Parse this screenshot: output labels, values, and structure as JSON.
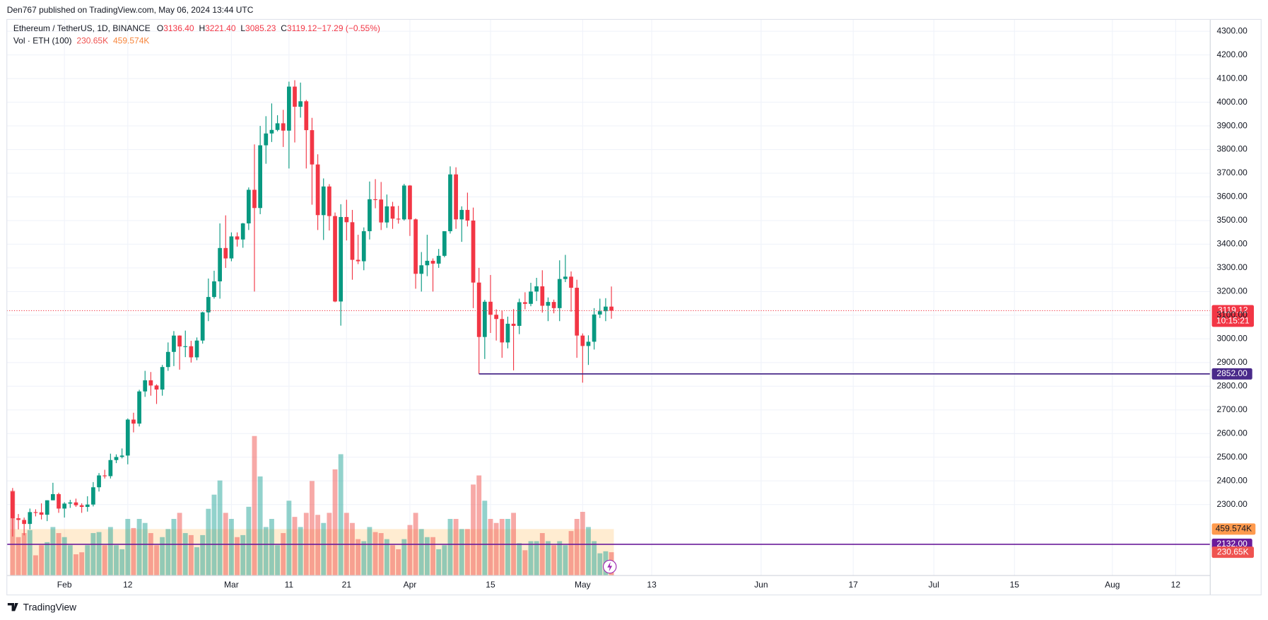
{
  "header": "Den767 published on TradingView.com, May 06, 2024 13:44 UTC",
  "footer": "TradingView",
  "chart_data": {
    "type": "candlestick",
    "symbol": "Ethereum / TetherUS, 1D, BINANCE",
    "ohlc_legend": [
      {
        "key": "O",
        "value": "3136.40"
      },
      {
        "key": "H",
        "value": "3221.40"
      },
      {
        "key": "L",
        "value": "3085.23"
      },
      {
        "key": "C",
        "value": "3119.12"
      },
      {
        "key": "",
        "value": "−17.29 (−0.55%)"
      }
    ],
    "volume_title": "Vol · ETH (100)",
    "volume_legend": [
      "230.65K",
      "459.574K"
    ],
    "x": [
      "2024-01-23",
      "2024-01-24",
      "2024-01-25",
      "2024-01-26",
      "2024-01-27",
      "2024-01-28",
      "2024-01-29",
      "2024-01-30",
      "2024-01-31",
      "2024-02-01",
      "2024-02-02",
      "2024-02-03",
      "2024-02-04",
      "2024-02-05",
      "2024-02-06",
      "2024-02-07",
      "2024-02-08",
      "2024-02-09",
      "2024-02-10",
      "2024-02-11",
      "2024-02-12",
      "2024-02-13",
      "2024-02-14",
      "2024-02-15",
      "2024-02-16",
      "2024-02-17",
      "2024-02-18",
      "2024-02-19",
      "2024-02-20",
      "2024-02-21",
      "2024-02-22",
      "2024-02-23",
      "2024-02-24",
      "2024-02-25",
      "2024-02-26",
      "2024-02-27",
      "2024-02-28",
      "2024-02-29",
      "2024-03-01",
      "2024-03-02",
      "2024-03-03",
      "2024-03-04",
      "2024-03-05",
      "2024-03-06",
      "2024-03-07",
      "2024-03-08",
      "2024-03-09",
      "2024-03-10",
      "2024-03-11",
      "2024-03-12",
      "2024-03-13",
      "2024-03-14",
      "2024-03-15",
      "2024-03-16",
      "2024-03-17",
      "2024-03-18",
      "2024-03-19",
      "2024-03-20",
      "2024-03-21",
      "2024-03-22",
      "2024-03-23",
      "2024-03-24",
      "2024-03-25",
      "2024-03-26",
      "2024-03-27",
      "2024-03-28",
      "2024-03-29",
      "2024-03-30",
      "2024-03-31",
      "2024-04-01",
      "2024-04-02",
      "2024-04-03",
      "2024-04-04",
      "2024-04-05",
      "2024-04-06",
      "2024-04-07",
      "2024-04-08",
      "2024-04-09",
      "2024-04-10",
      "2024-04-11",
      "2024-04-12",
      "2024-04-13",
      "2024-04-14",
      "2024-04-15",
      "2024-04-16",
      "2024-04-17",
      "2024-04-18",
      "2024-04-19",
      "2024-04-20",
      "2024-04-21",
      "2024-04-22",
      "2024-04-23",
      "2024-04-24",
      "2024-04-25",
      "2024-04-26",
      "2024-04-27",
      "2024-04-28",
      "2024-04-29",
      "2024-04-30",
      "2024-05-01",
      "2024-05-02",
      "2024-05-03",
      "2024-05-04",
      "2024-05-05",
      "2024-05-06"
    ],
    "open": [
      2355,
      2242,
      2235,
      2218,
      2268,
      2267,
      2257,
      2318,
      2344,
      2283,
      2304,
      2309,
      2297,
      2290,
      2300,
      2373,
      2423,
      2420,
      2488,
      2501,
      2507,
      2659,
      2642,
      2778,
      2825,
      2803,
      2786,
      2881,
      2945,
      3014,
      2968,
      2969,
      2922,
      2993,
      3112,
      3177,
      3243,
      3384,
      3340,
      3433,
      3420,
      3488,
      3630,
      3553,
      3818,
      3868,
      3883,
      3911,
      3880,
      4066,
      3981,
      4004,
      3882,
      3737,
      3523,
      3644,
      3519,
      3158,
      3515,
      3493,
      3334,
      3328,
      3455,
      3590,
      3589,
      3492,
      3560,
      3508,
      3505,
      3648,
      3505,
      3275,
      3311,
      3330,
      3318,
      3351,
      3455,
      3695,
      3505,
      3545,
      3500,
      3238,
      3008,
      3157,
      3102,
      3084,
      2985,
      3064,
      3055,
      3155,
      3148,
      3200,
      3222,
      3140,
      3156,
      3130,
      3253,
      3263,
      3216,
      3014,
      2970,
      2988,
      3103,
      3117,
      3136.4
    ],
    "high": [
      2370,
      2260,
      2245,
      2283,
      2280,
      2305,
      2318,
      2392,
      2350,
      2310,
      2320,
      2325,
      2305,
      2335,
      2395,
      2433,
      2447,
      2515,
      2512,
      2537,
      2664,
      2688,
      2785,
      2865,
      2860,
      2808,
      2890,
      2985,
      3033,
      3015,
      3035,
      2992,
      3006,
      3115,
      3255,
      3288,
      3488,
      3522,
      3450,
      3450,
      3490,
      3640,
      3822,
      3900,
      3941,
      3995,
      3945,
      3968,
      4087,
      4093,
      4083,
      4010,
      3934,
      3780,
      3678,
      3654,
      3534,
      3569,
      3588,
      3545,
      3440,
      3471,
      3665,
      3675,
      3663,
      3610,
      3579,
      3562,
      3655,
      3650,
      3509,
      3367,
      3440,
      3340,
      3380,
      3455,
      3729,
      3725,
      3560,
      3618,
      3555,
      3300,
      3165,
      3270,
      3125,
      3120,
      3094,
      3126,
      3170,
      3197,
      3237,
      3258,
      3290,
      3175,
      3166,
      3332,
      3355,
      3285,
      3250,
      3023,
      3015,
      3130,
      3170,
      3172,
      3221.4
    ],
    "low": [
      2165,
      2195,
      2170,
      2195,
      2250,
      2237,
      2230,
      2318,
      2265,
      2245,
      2286,
      2290,
      2265,
      2270,
      2292,
      2355,
      2410,
      2410,
      2475,
      2495,
      2470,
      2605,
      2630,
      2755,
      2760,
      2725,
      2760,
      2865,
      2885,
      2870,
      2923,
      2900,
      2910,
      2980,
      3075,
      3170,
      3170,
      3300,
      3328,
      3390,
      3385,
      3460,
      3200,
      3527,
      3740,
      3832,
      3877,
      3811,
      3720,
      3830,
      3935,
      3720,
      3567,
      3460,
      3418,
      3458,
      3155,
      3056,
      3416,
      3250,
      3316,
      3290,
      3420,
      3552,
      3460,
      3469,
      3465,
      3487,
      3500,
      3435,
      3212,
      3200,
      3265,
      3200,
      3300,
      3345,
      3445,
      3465,
      3410,
      3475,
      3130,
      2852,
      2915,
      3025,
      2993,
      2920,
      2960,
      2867,
      3020,
      3125,
      3138,
      3160,
      3111,
      3075,
      3108,
      3075,
      3240,
      3115,
      2920,
      2815,
      2890,
      2955,
      3088,
      3075,
      3085.23
    ],
    "close": [
      2242,
      2235,
      2218,
      2268,
      2267,
      2257,
      2318,
      2344,
      2283,
      2304,
      2309,
      2297,
      2290,
      2300,
      2373,
      2423,
      2420,
      2488,
      2501,
      2507,
      2659,
      2642,
      2778,
      2825,
      2803,
      2786,
      2881,
      2945,
      3014,
      2968,
      2969,
      2922,
      2993,
      3112,
      3177,
      3243,
      3384,
      3340,
      3433,
      3420,
      3488,
      3630,
      3553,
      3818,
      3868,
      3883,
      3911,
      3880,
      4066,
      3981,
      4004,
      3882,
      3737,
      3523,
      3644,
      3519,
      3158,
      3515,
      3493,
      3334,
      3328,
      3455,
      3590,
      3589,
      3492,
      3560,
      3508,
      3505,
      3648,
      3505,
      3275,
      3311,
      3330,
      3318,
      3351,
      3455,
      3695,
      3505,
      3545,
      3500,
      3238,
      3008,
      3157,
      3102,
      3084,
      2985,
      3064,
      3055,
      3155,
      3148,
      3200,
      3222,
      3140,
      3156,
      3130,
      3253,
      3263,
      3216,
      3014,
      2970,
      2988,
      3103,
      3117,
      3136.4,
      3119.12
    ],
    "volume": [
      840000,
      380000,
      420000,
      450000,
      200000,
      300000,
      330000,
      480000,
      420000,
      380000,
      300000,
      210000,
      230000,
      300000,
      420000,
      430000,
      300000,
      480000,
      300000,
      260000,
      560000,
      470000,
      560000,
      520000,
      420000,
      300000,
      380000,
      460000,
      560000,
      620000,
      420000,
      400000,
      280000,
      400000,
      660000,
      800000,
      940000,
      620000,
      560000,
      380000,
      400000,
      680000,
      1380000,
      980000,
      480000,
      560000,
      300000,
      420000,
      740000,
      580000,
      480000,
      620000,
      935000,
      600000,
      520000,
      620000,
      1050000,
      1200000,
      620000,
      520000,
      360000,
      340000,
      480000,
      430000,
      420000,
      360000,
      300000,
      260000,
      360000,
      500000,
      620000,
      460000,
      380000,
      380000,
      260000,
      300000,
      560000,
      560000,
      460000,
      460000,
      900000,
      990000,
      740000,
      560000,
      520000,
      560000,
      560000,
      620000,
      320000,
      250000,
      340000,
      340000,
      420000,
      340000,
      300000,
      340000,
      300000,
      440000,
      560000,
      630000,
      480000,
      340000,
      220000,
      240000,
      230650
    ],
    "volume_label": "230.65K",
    "volume_ma": 459574,
    "volume_ma_label": "459.574K",
    "up_color": "#089981",
    "down_color": "#f23645",
    "ylim": [
      2000,
      4350
    ],
    "yticks": [
      {
        "value": 2300,
        "label": "2300.00"
      },
      {
        "value": 2400,
        "label": "2400.00"
      },
      {
        "value": 2500,
        "label": "2500.00"
      },
      {
        "value": 2600,
        "label": "2600.00"
      },
      {
        "value": 2700,
        "label": "2700.00"
      },
      {
        "value": 2800,
        "label": "2800.00"
      },
      {
        "value": 2900,
        "label": "2900.00"
      },
      {
        "value": 3000,
        "label": "3000.00"
      },
      {
        "value": 3100,
        "label": "3100.00"
      },
      {
        "value": 3200,
        "label": "3200.00"
      },
      {
        "value": 3300,
        "label": "3300.00"
      },
      {
        "value": 3400,
        "label": "3400.00"
      },
      {
        "value": 3500,
        "label": "3500.00"
      },
      {
        "value": 3600,
        "label": "3600.00"
      },
      {
        "value": 3700,
        "label": "3700.00"
      },
      {
        "value": 3800,
        "label": "3800.00"
      },
      {
        "value": 3900,
        "label": "3900.00"
      },
      {
        "value": 4000,
        "label": "4000.00"
      },
      {
        "value": 4100,
        "label": "4100.00"
      },
      {
        "value": 4200,
        "label": "4200.00"
      },
      {
        "value": 4300,
        "label": "4300.00"
      }
    ],
    "y2lim": [
      0,
      5500000
    ],
    "xlim": [
      "2024-01-22",
      "2024-08-18"
    ],
    "xticks": [
      {
        "value": "2024-02-01",
        "label": "Feb"
      },
      {
        "value": "2024-02-12",
        "label": "12"
      },
      {
        "value": "2024-03-01",
        "label": "Mar"
      },
      {
        "value": "2024-03-11",
        "label": "11"
      },
      {
        "value": "2024-03-21",
        "label": "21"
      },
      {
        "value": "2024-04-01",
        "label": "Apr"
      },
      {
        "value": "2024-04-15",
        "label": "15"
      },
      {
        "value": "2024-05-01",
        "label": "May"
      },
      {
        "value": "2024-05-13",
        "label": "13"
      },
      {
        "value": "2024-06-01",
        "label": "Jun"
      },
      {
        "value": "2024-06-17",
        "label": "17"
      },
      {
        "value": "2024-07-01",
        "label": "Jul"
      },
      {
        "value": "2024-07-15",
        "label": "15"
      },
      {
        "value": "2024-08-01",
        "label": "Aug"
      },
      {
        "value": "2024-08-12",
        "label": "12"
      }
    ],
    "grid": true,
    "last_price": {
      "value": 3119.12,
      "label": "3119.12",
      "countdown": "10:15:21"
    },
    "horizontal_lines": [
      {
        "value": 2852,
        "label": "2852.00",
        "start": "2024-04-13",
        "color": "#4a2a8a"
      },
      {
        "value": 2132,
        "label": "2132.00",
        "color": "#6a1b9a"
      }
    ]
  }
}
